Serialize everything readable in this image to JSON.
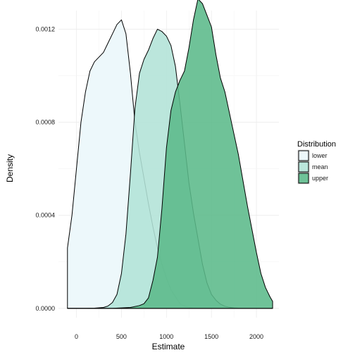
{
  "chart_data": {
    "type": "area",
    "subtype": "density",
    "xlabel": "Estimate",
    "ylabel": "Density",
    "xlim": [
      -200,
      2250
    ],
    "ylim": [
      -4e-05,
      0.00128
    ],
    "x_ticks": [
      0,
      500,
      1000,
      1500,
      2000
    ],
    "y_ticks": [
      0.0,
      0.0004,
      0.0008,
      0.0012
    ],
    "y_tick_labels": [
      "0.0000",
      "0.0004",
      "0.0008",
      "0.0012"
    ],
    "grid": true,
    "legend": {
      "title": "Distribution",
      "position": "right"
    },
    "series": [
      {
        "name": "lower",
        "color": "#edf8fb",
        "opacity": 1.0,
        "x": [
          -100,
          -50,
          0,
          50,
          100,
          150,
          200,
          250,
          300,
          350,
          400,
          450,
          500,
          550,
          600,
          650,
          700,
          750,
          800,
          850,
          900,
          950,
          1000,
          1050,
          1100,
          1150,
          1200,
          1250,
          1300,
          1350,
          1400,
          1450,
          1500,
          1550,
          1600,
          1650,
          1700,
          1750,
          1800,
          1850,
          1900,
          1950,
          2000,
          2050,
          2100,
          2150,
          2180
        ],
        "values": [
          0.00026,
          0.0004,
          0.0006,
          0.0008,
          0.00093,
          0.00102,
          0.00106,
          0.00108,
          0.0011,
          0.00114,
          0.00118,
          0.00122,
          0.00124,
          0.00118,
          0.00101,
          0.0008,
          0.00067,
          0.00056,
          0.00045,
          0.00035,
          0.00026,
          0.00019,
          0.00013,
          8e-05,
          5e-05,
          2e-05,
          1e-05,
          4.5e-06,
          2e-06,
          1e-06,
          0.0,
          0.0,
          0.0,
          0.0,
          0.0,
          0.0,
          0.0,
          0.0,
          0.0,
          0.0,
          0.0,
          0.0,
          0.0,
          0.0,
          0.0,
          0.0,
          0.0
        ]
      },
      {
        "name": "mean",
        "color": "#b2e2d7",
        "opacity": 0.88,
        "x": [
          -100,
          0,
          100,
          200,
          300,
          350,
          400,
          450,
          500,
          550,
          600,
          650,
          700,
          750,
          800,
          850,
          900,
          950,
          1000,
          1050,
          1100,
          1150,
          1200,
          1250,
          1300,
          1350,
          1400,
          1450,
          1500,
          1550,
          1600,
          1650,
          1700,
          1750,
          1800,
          1900,
          2000,
          2100,
          2180
        ],
        "values": [
          0.0,
          0.0,
          0.0,
          1e-06,
          4e-06,
          1e-05,
          2.5e-05,
          6e-05,
          0.00015,
          0.00032,
          0.00058,
          0.00086,
          0.00101,
          0.00107,
          0.00111,
          0.00116,
          0.0012,
          0.00119,
          0.00117,
          0.00113,
          0.00104,
          0.00088,
          0.00071,
          0.00054,
          0.00041,
          0.0003,
          0.00019,
          0.00011,
          6e-05,
          3.5e-05,
          1.8e-05,
          9e-06,
          4.5e-06,
          2e-06,
          1e-06,
          0.0,
          0.0,
          0.0,
          0.0
        ]
      },
      {
        "name": "upper",
        "color": "#5bb98a",
        "opacity": 0.88,
        "x": [
          -100,
          0,
          200,
          400,
          600,
          700,
          750,
          800,
          850,
          900,
          950,
          1000,
          1050,
          1100,
          1150,
          1200,
          1250,
          1300,
          1350,
          1400,
          1450,
          1500,
          1550,
          1600,
          1650,
          1700,
          1750,
          1800,
          1850,
          1900,
          1950,
          2000,
          2050,
          2100,
          2150,
          2180
        ],
        "values": [
          0.0,
          0.0,
          0.0,
          0.0,
          4e-06,
          1.2e-05,
          2e-05,
          4.5e-05,
          0.00012,
          0.00022,
          0.00043,
          0.00069,
          0.00085,
          0.00093,
          0.00098,
          0.00102,
          0.00112,
          0.00124,
          0.00133,
          0.00131,
          0.00126,
          0.00121,
          0.00109,
          0.00099,
          0.00093,
          0.00084,
          0.00075,
          0.00066,
          0.00055,
          0.00044,
          0.00034,
          0.00024,
          0.00015,
          9e-05,
          5e-05,
          3e-05
        ]
      }
    ]
  }
}
